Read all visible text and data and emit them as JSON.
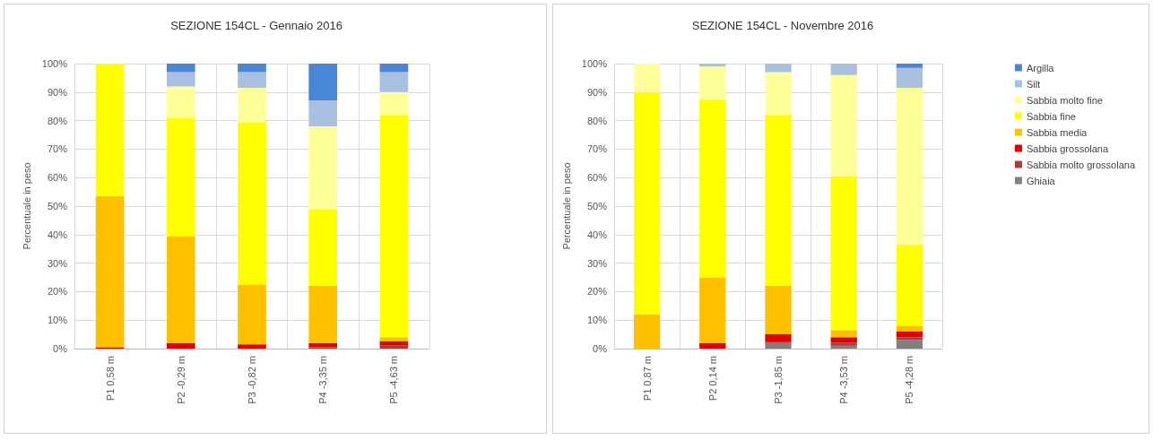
{
  "chart_data": [
    {
      "type": "bar",
      "stacked": true,
      "title": "SEZIONE 154CL - Gennaio 2016",
      "ylabel": "Percentuale in peso",
      "categories": [
        "P1 0,58 m",
        "P2 -0,29 m",
        "P3 -0,82 m",
        "P4 -3,35 m",
        "P5 -4,63 m"
      ],
      "ylim": [
        0,
        100
      ],
      "yticks": [
        {
          "value": 0,
          "label": "0%"
        },
        {
          "value": 10,
          "label": "10%"
        },
        {
          "value": 20,
          "label": "20%"
        },
        {
          "value": 30,
          "label": "30%"
        },
        {
          "value": 40,
          "label": "40%"
        },
        {
          "value": 50,
          "label": "50%"
        },
        {
          "value": 60,
          "label": "60%"
        },
        {
          "value": 70,
          "label": "70%"
        },
        {
          "value": 80,
          "label": "80%"
        },
        {
          "value": 90,
          "label": "90%"
        },
        {
          "value": 100,
          "label": "100%"
        }
      ],
      "grid": true,
      "legend": false,
      "series": [
        {
          "color": "#808080",
          "values": [
            0,
            0,
            0,
            0,
            0
          ]
        },
        {
          "color": "#a0403c",
          "values": [
            0,
            0,
            0,
            0.5,
            1
          ]
        },
        {
          "color": "#e00000",
          "values": [
            0.5,
            2,
            1.5,
            1.5,
            1.5
          ]
        },
        {
          "color": "#ffc000",
          "values": [
            53,
            37.5,
            21,
            20,
            1.5
          ]
        },
        {
          "color": "#ffff00",
          "values": [
            46.5,
            41.5,
            57,
            27,
            78
          ]
        },
        {
          "color": "#ffff99",
          "values": [
            0,
            11,
            12,
            29,
            8
          ]
        },
        {
          "color": "#a9c0e0",
          "values": [
            0,
            5,
            5.5,
            9,
            7
          ]
        },
        {
          "color": "#4a86d6",
          "values": [
            0,
            3,
            3,
            13,
            3
          ]
        }
      ]
    },
    {
      "type": "bar",
      "stacked": true,
      "title": "SEZIONE 154CL - Novembre 2016",
      "ylabel": "Percentuale in peso",
      "categories": [
        "P1 0,87 m",
        "P2 0,14 m",
        "P3 -1,85 m",
        "P4 -3,53 m",
        "P5 -4,28 m"
      ],
      "ylim": [
        0,
        100
      ],
      "yticks": [
        {
          "value": 0,
          "label": "0%"
        },
        {
          "value": 10,
          "label": "10%"
        },
        {
          "value": 20,
          "label": "20%"
        },
        {
          "value": 30,
          "label": "30%"
        },
        {
          "value": 40,
          "label": "40%"
        },
        {
          "value": 50,
          "label": "50%"
        },
        {
          "value": 60,
          "label": "60%"
        },
        {
          "value": 70,
          "label": "70%"
        },
        {
          "value": 80,
          "label": "80%"
        },
        {
          "value": 90,
          "label": "90%"
        },
        {
          "value": 100,
          "label": "100%"
        }
      ],
      "grid": true,
      "legend": "right",
      "series": [
        {
          "name": "Ghiaia",
          "color": "#808080",
          "values": [
            0,
            0,
            2,
            1,
            3
          ]
        },
        {
          "name": "Sabbia molto grossolana",
          "color": "#a0403c",
          "values": [
            0,
            0,
            0.5,
            1,
            1
          ]
        },
        {
          "name": "Sabbia grossolana",
          "color": "#e00000",
          "values": [
            0,
            2,
            2.5,
            2,
            2
          ]
        },
        {
          "name": "Sabbia media",
          "color": "#ffc000",
          "values": [
            12,
            23,
            17,
            2.5,
            2
          ]
        },
        {
          "name": "Sabbia fine",
          "color": "#ffff00",
          "values": [
            78,
            62.5,
            60,
            54,
            28.5
          ]
        },
        {
          "name": "Sabbia molto fine",
          "color": "#ffff99",
          "values": [
            10,
            11.5,
            15,
            35.5,
            55
          ]
        },
        {
          "name": "Silt",
          "color": "#a9c0e0",
          "values": [
            0,
            1,
            3,
            4,
            7
          ]
        },
        {
          "name": "Argilla",
          "color": "#4a86d6",
          "values": [
            0,
            0,
            0,
            0,
            1.5
          ]
        }
      ]
    }
  ]
}
